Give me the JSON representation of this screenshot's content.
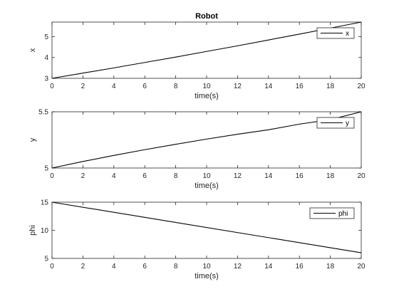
{
  "figure": {
    "title": "Robot"
  },
  "chart_data": [
    {
      "type": "line",
      "title": "Robot",
      "xlabel": "time(s)",
      "ylabel": "x",
      "xlim": [
        0,
        20
      ],
      "ylim": [
        3,
        5.7
      ],
      "xticks": [
        0,
        2,
        4,
        6,
        8,
        10,
        12,
        14,
        16,
        18,
        20
      ],
      "yticks": [
        3,
        4,
        5
      ],
      "ytick_labels": [
        "3",
        "4",
        "5"
      ],
      "grid": false,
      "legend_position": "top-right",
      "series": [
        {
          "name": "x",
          "color": "#000000",
          "x": [
            0,
            2,
            4,
            6,
            8,
            10,
            12,
            14,
            16,
            18,
            20
          ],
          "y": [
            3.0,
            3.25,
            3.5,
            3.76,
            4.02,
            4.29,
            4.56,
            4.84,
            5.12,
            5.41,
            5.7
          ]
        }
      ]
    },
    {
      "type": "line",
      "title": "",
      "xlabel": "time(s)",
      "ylabel": "y",
      "xlim": [
        0,
        20
      ],
      "ylim": [
        5,
        5.5
      ],
      "xticks": [
        0,
        2,
        4,
        6,
        8,
        10,
        12,
        14,
        16,
        18,
        20
      ],
      "yticks": [
        5,
        5.5
      ],
      "ytick_labels": [
        "5",
        "5.5"
      ],
      "grid": false,
      "legend_position": "top-right",
      "series": [
        {
          "name": "y",
          "color": "#000000",
          "x": [
            0,
            2,
            4,
            6,
            8,
            10,
            12,
            14,
            16,
            18,
            20
          ],
          "y": [
            5.0,
            5.058,
            5.112,
            5.163,
            5.211,
            5.257,
            5.3,
            5.34,
            5.39,
            5.43,
            5.5
          ]
        }
      ]
    },
    {
      "type": "line",
      "title": "",
      "xlabel": "time(s)",
      "ylabel": "phi",
      "xlim": [
        0,
        20
      ],
      "ylim": [
        5,
        15
      ],
      "xticks": [
        0,
        2,
        4,
        6,
        8,
        10,
        12,
        14,
        16,
        18,
        20
      ],
      "yticks": [
        5,
        10,
        15
      ],
      "ytick_labels": [
        "5",
        "10",
        "15"
      ],
      "grid": false,
      "legend_position": "top-right",
      "series": [
        {
          "name": "phi",
          "color": "#000000",
          "x": [
            0,
            20
          ],
          "y": [
            15,
            6
          ]
        }
      ]
    }
  ]
}
